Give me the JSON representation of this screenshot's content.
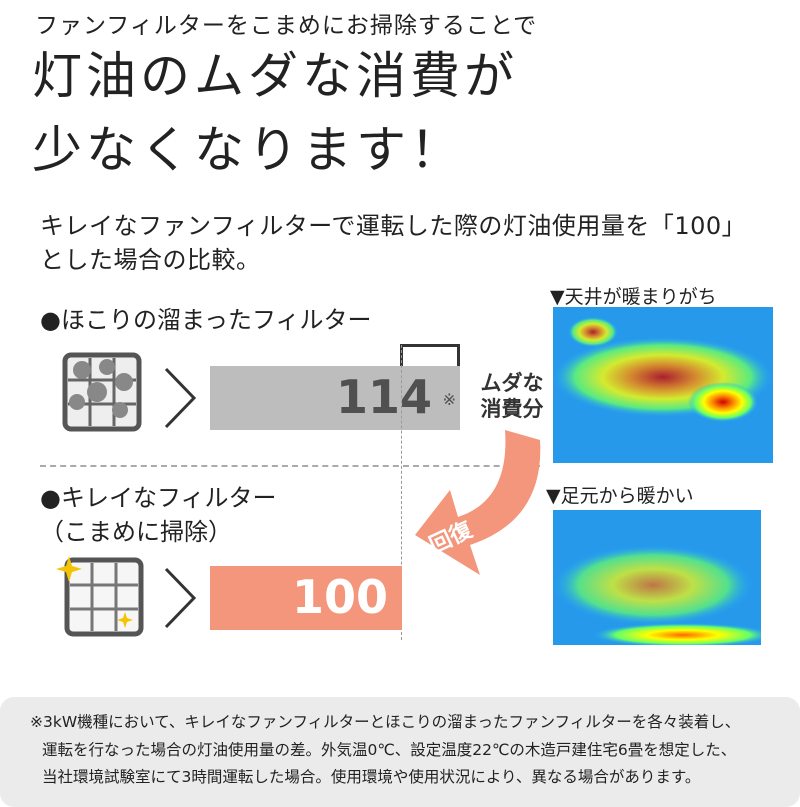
{
  "lead": "ファンフィルターをこまめにお掃除することで",
  "title": {
    "line1": "灯油のムダな消費が",
    "line2": "少なくなります！"
  },
  "subtitle": {
    "line1": "キレイなファンフィルターで運転した際の灯油使用量を「100」",
    "line2": "とした場合の比較。"
  },
  "comparison": {
    "dusty": {
      "label": "●ほこりの溜まったフィルター",
      "value": "114",
      "note_mark": "※",
      "color": "#bdbdbd"
    },
    "clean": {
      "label": "●キレイなフィルター",
      "label2": "（こまめに掃除）",
      "value": "100",
      "color": "#f3967b"
    },
    "waste_label": "ムダな消費分",
    "recovery_label": "回復"
  },
  "thermal": {
    "dusty_caption": "▼天井が暖まりがち",
    "clean_caption": "▼足元から暖かい"
  },
  "footnote": [
    "※3kW機種において、キレイなファンフィルターとほこりの溜まったファンフィルターを各々装着し、",
    "運転を行なった場合の灯油使用量の差。外気温0℃、設定温度22℃の木造戸建住宅6畳を想定した、",
    "当社環境試験室にて3時間運転した場合。使用環境や使用状況により、異なる場合があります。"
  ]
}
